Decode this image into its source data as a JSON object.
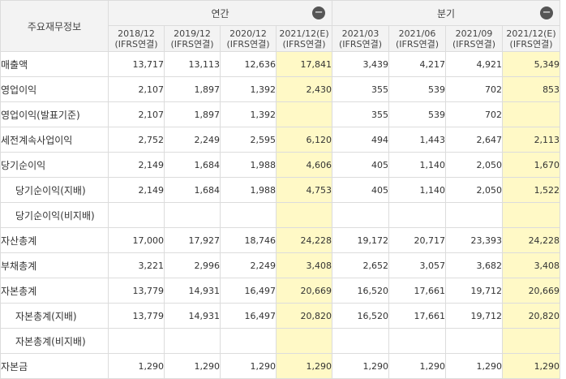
{
  "table": {
    "corner_label": "주요재무정보",
    "groups": [
      {
        "label": "연간",
        "toggle": "−"
      },
      {
        "label": "분기",
        "toggle": "−"
      }
    ],
    "periods": [
      {
        "date": "2018/12",
        "basis": "(IFRS연결)"
      },
      {
        "date": "2019/12",
        "basis": "(IFRS연결)"
      },
      {
        "date": "2020/12",
        "basis": "(IFRS연결)"
      },
      {
        "date": "2021/12(E)",
        "basis": "(IFRS연결)"
      },
      {
        "date": "2021/03",
        "basis": "(IFRS연결)"
      },
      {
        "date": "2021/06",
        "basis": "(IFRS연결)"
      },
      {
        "date": "2021/09",
        "basis": "(IFRS연결)"
      },
      {
        "date": "2021/12(E)",
        "basis": "(IFRS연결)"
      }
    ],
    "rows": [
      {
        "label": "매출액",
        "values": [
          "13,717",
          "13,113",
          "12,636",
          "17,841",
          "3,439",
          "4,217",
          "4,921",
          "5,349"
        ]
      },
      {
        "label": "영업이익",
        "values": [
          "2,107",
          "1,897",
          "1,392",
          "2,430",
          "355",
          "539",
          "702",
          "853"
        ]
      },
      {
        "label": "영업이익(발표기준)",
        "values": [
          "2,107",
          "1,897",
          "1,392",
          "",
          "355",
          "539",
          "702",
          ""
        ]
      },
      {
        "label": "세전계속사업이익",
        "values": [
          "2,752",
          "2,249",
          "2,595",
          "6,120",
          "494",
          "1,443",
          "2,647",
          "2,113"
        ]
      },
      {
        "label": "당기순이익",
        "values": [
          "2,149",
          "1,684",
          "1,988",
          "4,606",
          "405",
          "1,140",
          "2,050",
          "1,670"
        ]
      },
      {
        "label": "당기순이익(지배)",
        "values": [
          "2,149",
          "1,684",
          "1,988",
          "4,753",
          "405",
          "1,140",
          "2,050",
          "1,522"
        ]
      },
      {
        "label": "당기순이익(비지배)",
        "values": [
          "",
          "",
          "",
          "",
          "",
          "",
          "",
          ""
        ]
      },
      {
        "label": "자산총계",
        "values": [
          "17,000",
          "17,927",
          "18,746",
          "24,228",
          "19,172",
          "20,717",
          "23,393",
          "24,228"
        ]
      },
      {
        "label": "부채총계",
        "values": [
          "3,221",
          "2,996",
          "2,249",
          "3,408",
          "2,652",
          "3,057",
          "3,682",
          "3,408"
        ]
      },
      {
        "label": "자본총계",
        "values": [
          "13,779",
          "14,931",
          "16,497",
          "20,669",
          "16,520",
          "17,661",
          "19,712",
          "20,669"
        ]
      },
      {
        "label": "자본총계(지배)",
        "values": [
          "13,779",
          "14,931",
          "16,497",
          "20,820",
          "16,520",
          "17,661",
          "19,712",
          "20,820"
        ]
      },
      {
        "label": "자본총계(비지배)",
        "values": [
          "",
          "",
          "",
          "",
          "",
          "",
          "",
          ""
        ]
      },
      {
        "label": "자본금",
        "values": [
          "1,290",
          "1,290",
          "1,290",
          "1,290",
          "1,290",
          "1,290",
          "1,290",
          "1,290"
        ]
      }
    ],
    "estimate_columns": [
      3,
      7
    ],
    "subitem_rows": [
      5,
      6,
      10,
      11
    ],
    "estimate_color": "#fff9c6",
    "header_color": "#f3f3f3"
  }
}
